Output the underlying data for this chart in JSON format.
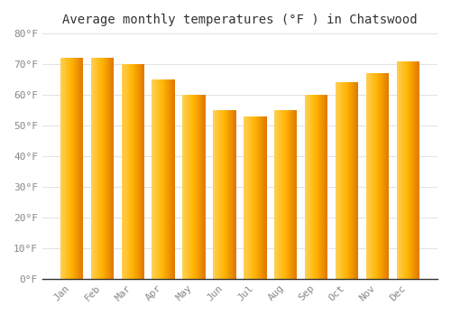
{
  "title": "Average monthly temperatures (°F ) in Chatswood",
  "months": [
    "Jan",
    "Feb",
    "Mar",
    "Apr",
    "May",
    "Jun",
    "Jul",
    "Aug",
    "Sep",
    "Oct",
    "Nov",
    "Dec"
  ],
  "values": [
    72,
    72,
    70,
    65,
    60,
    55,
    53,
    55,
    60,
    64,
    67,
    71
  ],
  "bar_color_center": "#FFB300",
  "bar_color_left": "#FFD054",
  "bar_color_right": "#E07800",
  "ylim": [
    0,
    80
  ],
  "ytick_step": 10,
  "background_color": "#FFFFFF",
  "grid_color": "#DDDDDD",
  "title_fontsize": 10,
  "tick_fontsize": 8,
  "bar_width": 0.75
}
